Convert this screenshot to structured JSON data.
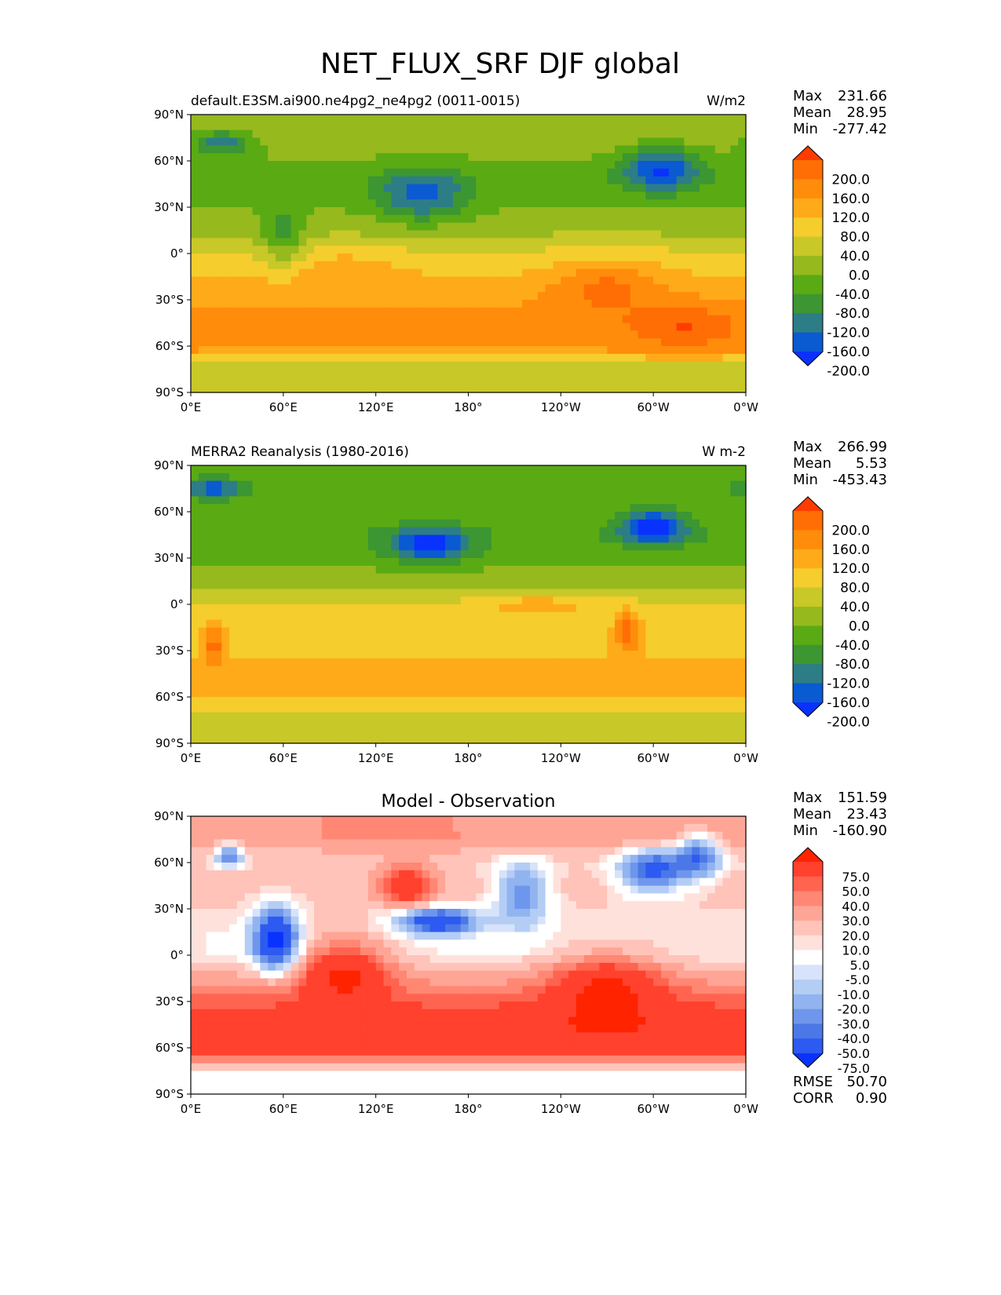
{
  "figure": {
    "title": "NET_FLUX_SRF DJF global"
  },
  "colors": {
    "flux_levels": [
      "#0a32ff",
      "#0a5ad2",
      "#2d7d86",
      "#3c9632",
      "#5aaa14",
      "#96b91e",
      "#c8c828",
      "#f5cd2d",
      "#ffaa19",
      "#ff8c0a",
      "#ff6e05",
      "#ff3c00"
    ],
    "diff_levels": [
      "#0a32ff",
      "#2d5af0",
      "#4b78e6",
      "#6e96ec",
      "#91b4f0",
      "#b4cdf5",
      "#d7e3fa",
      "#ffffff",
      "#ffe1dc",
      "#ffc3b9",
      "#ffa596",
      "#ff8773",
      "#ff6450",
      "#ff412d",
      "#ff2300"
    ]
  },
  "chart_data": [
    {
      "type": "heatmap",
      "title": "default.E3SM.ai900.ne4pg2_ne4pg2 (0011-0015)",
      "units": "W/m2",
      "stats": {
        "max_label": "Max",
        "max": "231.66",
        "mean_label": "Mean",
        "mean": "28.95",
        "min_label": "Min",
        "min": "-277.42"
      },
      "xticks": [
        "0°E",
        "60°E",
        "120°E",
        "180°",
        "120°W",
        "60°W",
        "0°W"
      ],
      "yticks": [
        "90°N",
        "60°N",
        "30°N",
        "0°",
        "30°S",
        "60°S",
        "90°S"
      ],
      "xlim": [
        0,
        360
      ],
      "ylim": [
        -90,
        90
      ],
      "colorbar": {
        "levels": [
          "200.0",
          "160.0",
          "120.0",
          "80.0",
          "40.0",
          "0.0",
          "-40.0",
          "-80.0",
          "-120.0",
          "-160.0",
          "-200.0"
        ]
      },
      "field": {
        "base": 0,
        "zonal": [
          [
            -90,
            10
          ],
          [
            -75,
            15
          ],
          [
            -60,
            140
          ],
          [
            -45,
            145
          ],
          [
            -30,
            110
          ],
          [
            -15,
            80
          ],
          [
            0,
            45
          ],
          [
            15,
            -10
          ],
          [
            30,
            -40
          ],
          [
            45,
            -60
          ],
          [
            60,
            -40
          ],
          [
            75,
            -10
          ],
          [
            90,
            -10
          ]
        ],
        "anomalies": [
          {
            "lon": 150,
            "lat": 38,
            "amp": -130,
            "slon": 20,
            "slat": 12
          },
          {
            "lon": 305,
            "lat": 55,
            "amp": -160,
            "slon": 18,
            "slat": 10
          },
          {
            "lon": 20,
            "lat": 72,
            "amp": -120,
            "slon": 15,
            "slat": 6
          },
          {
            "lon": 60,
            "lat": 10,
            "amp": -90,
            "slon": 10,
            "slat": 15
          },
          {
            "lon": 270,
            "lat": -20,
            "amp": 80,
            "slon": 25,
            "slat": 12
          },
          {
            "lon": 320,
            "lat": -45,
            "amp": 60,
            "slon": 20,
            "slat": 10
          },
          {
            "lon": 100,
            "lat": -10,
            "amp": 40,
            "slon": 25,
            "slat": 10
          }
        ]
      }
    },
    {
      "type": "heatmap",
      "title": "MERRA2 Reanalysis (1980-2016)",
      "units": "W m-2",
      "stats": {
        "max_label": "Max",
        "max": "266.99",
        "mean_label": "Mean",
        "mean": "5.53",
        "min_label": "Min",
        "min": "-453.43"
      },
      "xticks": [
        "0°E",
        "60°E",
        "120°E",
        "180°",
        "120°W",
        "60°W",
        "0°W"
      ],
      "yticks": [
        "90°N",
        "60°N",
        "30°N",
        "0°",
        "30°S",
        "60°S",
        "90°S"
      ],
      "xlim": [
        0,
        360
      ],
      "ylim": [
        -90,
        90
      ],
      "colorbar": {
        "levels": [
          "200.0",
          "160.0",
          "120.0",
          "80.0",
          "40.0",
          "0.0",
          "-40.0",
          "-80.0",
          "-120.0",
          "-160.0",
          "-200.0"
        ]
      },
      "field": {
        "base": 0,
        "zonal": [
          [
            -90,
            10
          ],
          [
            -75,
            20
          ],
          [
            -60,
            90
          ],
          [
            -45,
            100
          ],
          [
            -30,
            70
          ],
          [
            -15,
            60
          ],
          [
            0,
            45
          ],
          [
            15,
            -20
          ],
          [
            30,
            -50
          ],
          [
            45,
            -75
          ],
          [
            60,
            -50
          ],
          [
            75,
            -40
          ],
          [
            90,
            -40
          ]
        ],
        "anomalies": [
          {
            "lon": 155,
            "lat": 38,
            "amp": -170,
            "slon": 18,
            "slat": 8
          },
          {
            "lon": 300,
            "lat": 50,
            "amp": -180,
            "slon": 15,
            "slat": 8
          },
          {
            "lon": 15,
            "lat": 75,
            "amp": -150,
            "slon": 15,
            "slat": 5
          },
          {
            "lon": 283,
            "lat": -18,
            "amp": 120,
            "slon": 6,
            "slat": 10
          },
          {
            "lon": 15,
            "lat": -25,
            "amp": 110,
            "slon": 5,
            "slat": 10
          },
          {
            "lon": 225,
            "lat": 0,
            "amp": 60,
            "slon": 25,
            "slat": 4
          }
        ]
      }
    },
    {
      "type": "heatmap",
      "title": "Model - Observation",
      "units": "",
      "stats": {
        "max_label": "Max",
        "max": "151.59",
        "mean_label": "Mean",
        "mean": "23.43",
        "min_label": "Min",
        "min": "-160.90"
      },
      "metrics": {
        "rmse_label": "RMSE",
        "rmse": "50.70",
        "corr_label": "CORR",
        "corr": "0.90"
      },
      "xticks": [
        "0°E",
        "60°E",
        "120°E",
        "180°",
        "120°W",
        "60°W",
        "0°W"
      ],
      "yticks": [
        "90°N",
        "60°N",
        "30°N",
        "0°",
        "30°S",
        "60°S",
        "90°S"
      ],
      "xlim": [
        0,
        360
      ],
      "ylim": [
        -90,
        90
      ],
      "colorbar": {
        "levels": [
          "75.0",
          "50.0",
          "40.0",
          "30.0",
          "20.0",
          "10.0",
          "5.0",
          "-5.0",
          "-10.0",
          "-20.0",
          "-30.0",
          "-40.0",
          "-50.0",
          "-75.0"
        ]
      },
      "field": {
        "base": 0,
        "zonal": [
          [
            -90,
            0
          ],
          [
            -75,
            5
          ],
          [
            -60,
            60
          ],
          [
            -45,
            70
          ],
          [
            -30,
            45
          ],
          [
            -15,
            25
          ],
          [
            0,
            5
          ],
          [
            15,
            5
          ],
          [
            30,
            10
          ],
          [
            45,
            15
          ],
          [
            60,
            10
          ],
          [
            75,
            30
          ],
          [
            90,
            30
          ]
        ],
        "anomalies": [
          {
            "lon": 55,
            "lat": 10,
            "amp": -90,
            "slon": 10,
            "slat": 14
          },
          {
            "lon": 160,
            "lat": 22,
            "amp": -80,
            "slon": 18,
            "slat": 6
          },
          {
            "lon": 215,
            "lat": 40,
            "amp": -50,
            "slon": 12,
            "slat": 15
          },
          {
            "lon": 300,
            "lat": 55,
            "amp": -70,
            "slon": 15,
            "slat": 10
          },
          {
            "lon": 330,
            "lat": 65,
            "amp": -60,
            "slon": 10,
            "slat": 10
          },
          {
            "lon": 25,
            "lat": 65,
            "amp": -60,
            "slon": 6,
            "slat": 5
          },
          {
            "lon": 140,
            "lat": 45,
            "amp": 60,
            "slon": 12,
            "slat": 10
          },
          {
            "lon": 100,
            "lat": -10,
            "amp": 60,
            "slon": 20,
            "slat": 15
          },
          {
            "lon": 270,
            "lat": -20,
            "amp": 50,
            "slon": 25,
            "slat": 15
          }
        ]
      }
    }
  ]
}
